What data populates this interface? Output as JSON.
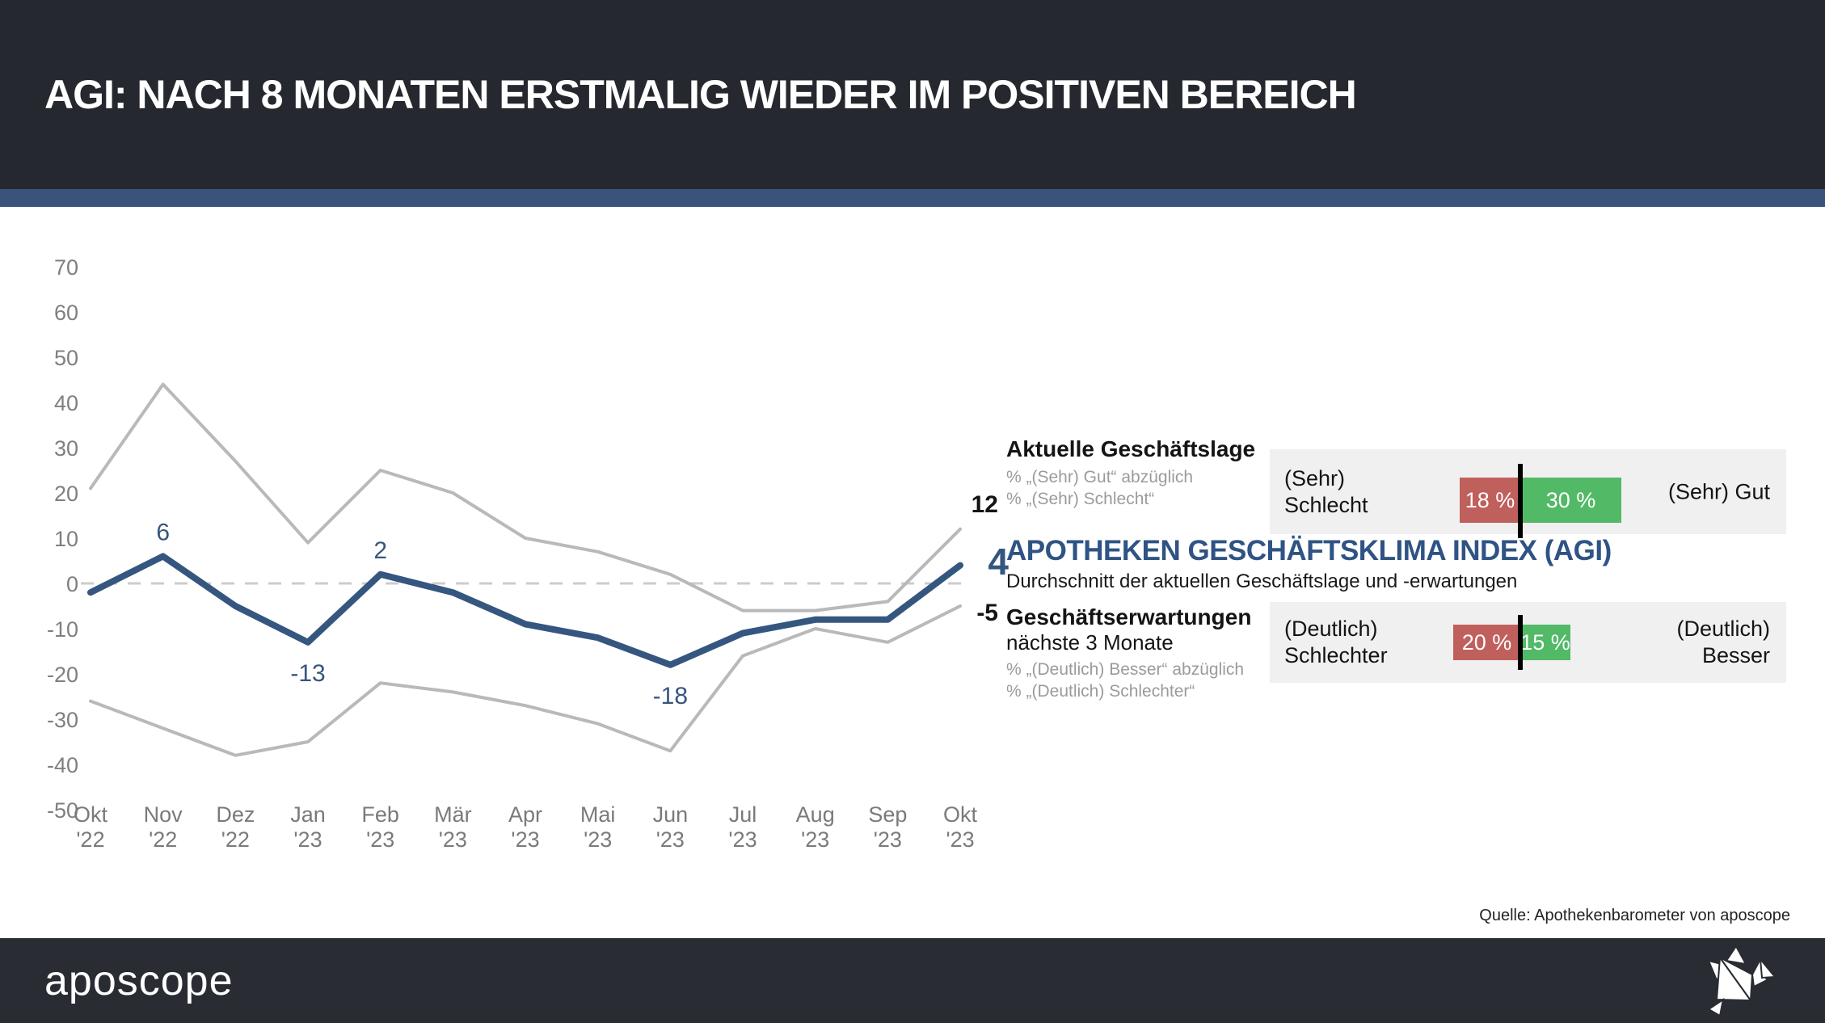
{
  "header": {
    "title": "AGI: NACH 8 MONATEN ERSTMALIG WIEDER IM POSITIVEN BEREICH"
  },
  "chart_data": {
    "type": "line",
    "categories": [
      "Okt '22",
      "Nov '22",
      "Dez '22",
      "Jan '23",
      "Feb '23",
      "Mär '23",
      "Apr '23",
      "Mai '23",
      "Jun '23",
      "Jul '23",
      "Aug '23",
      "Sep '23",
      "Okt '23"
    ],
    "series": [
      {
        "name": "Aktuelle Geschäftslage",
        "color": "#b9b9b9",
        "width": 4,
        "values": [
          21,
          44,
          27,
          9,
          25,
          20,
          10,
          7,
          2,
          -6,
          -6,
          -4,
          12
        ]
      },
      {
        "name": "Apotheken Geschäftsklima Index (AGI)",
        "color": "#35567f",
        "width": 8,
        "values": [
          -2,
          6,
          -5,
          -13,
          2,
          -2,
          -9,
          -12,
          -18,
          -11,
          -8,
          -8,
          4
        ]
      },
      {
        "name": "Geschäftserwartungen",
        "color": "#b9b9b9",
        "width": 4,
        "values": [
          -26,
          -32,
          -38,
          -35,
          -22,
          -24,
          -27,
          -31,
          -37,
          -16,
          -10,
          -13,
          -5
        ]
      }
    ],
    "ylim": [
      -50,
      70
    ],
    "ytick_step": 10,
    "grid": "none",
    "zero_line": "dashed",
    "legend": "none",
    "annotations": [
      {
        "series_index": 1,
        "point_index": 1,
        "text": "6",
        "placement": "above"
      },
      {
        "series_index": 1,
        "point_index": 3,
        "text": "-13",
        "placement": "below"
      },
      {
        "series_index": 1,
        "point_index": 4,
        "text": "2",
        "placement": "above"
      },
      {
        "series_index": 1,
        "point_index": 8,
        "text": "-18",
        "placement": "below"
      }
    ]
  },
  "right_panel": {
    "lage": {
      "title": "Aktuelle Geschäftslage",
      "formula_line1": "% „(Sehr) Gut“ abzüglich",
      "formula_line2": "% „(Sehr) Schlecht“",
      "end_value": "12",
      "left_label_line1": "(Sehr)",
      "left_label_line2": "Schlecht",
      "right_label": "(Sehr) Gut",
      "negative_pct": 18,
      "positive_pct": 30,
      "negative_pct_label": "18 %",
      "positive_pct_label": "30 %"
    },
    "agi": {
      "title": "APOTHEKEN GESCHÄFTSKLIMA INDEX (AGI)",
      "subtitle": "Durchschnitt der aktuellen Geschäftslage und -erwartungen",
      "end_value": "4"
    },
    "erwartungen": {
      "title": "Geschäftserwartungen",
      "subtitle": "nächste 3 Monate",
      "formula_line1": "% „(Deutlich) Besser“ abzüglich",
      "formula_line2": "% „(Deutlich) Schlechter“",
      "end_value": "-5",
      "left_label_line1": "(Deutlich)",
      "left_label_line2": "Schlechter",
      "right_label_line1": "(Deutlich)",
      "right_label_line2": "Besser",
      "negative_pct": 20,
      "positive_pct": 15,
      "negative_pct_label": "20 %",
      "positive_pct_label": "15 %"
    }
  },
  "source_note": "Quelle: Apothekenbarometer von aposcope",
  "footer": {
    "logo_text": "aposcope",
    "bird_icon": "origami-bird-icon"
  },
  "colors": {
    "header_bg": "#26282f",
    "accent_band": "#3a537a",
    "agi_blue": "#35567f",
    "line_gray": "#b9b9b9",
    "negative_red": "#c0605c",
    "positive_green": "#52b967",
    "panel_bg": "#f0f0f0",
    "footer_bg": "#2a2c33"
  }
}
